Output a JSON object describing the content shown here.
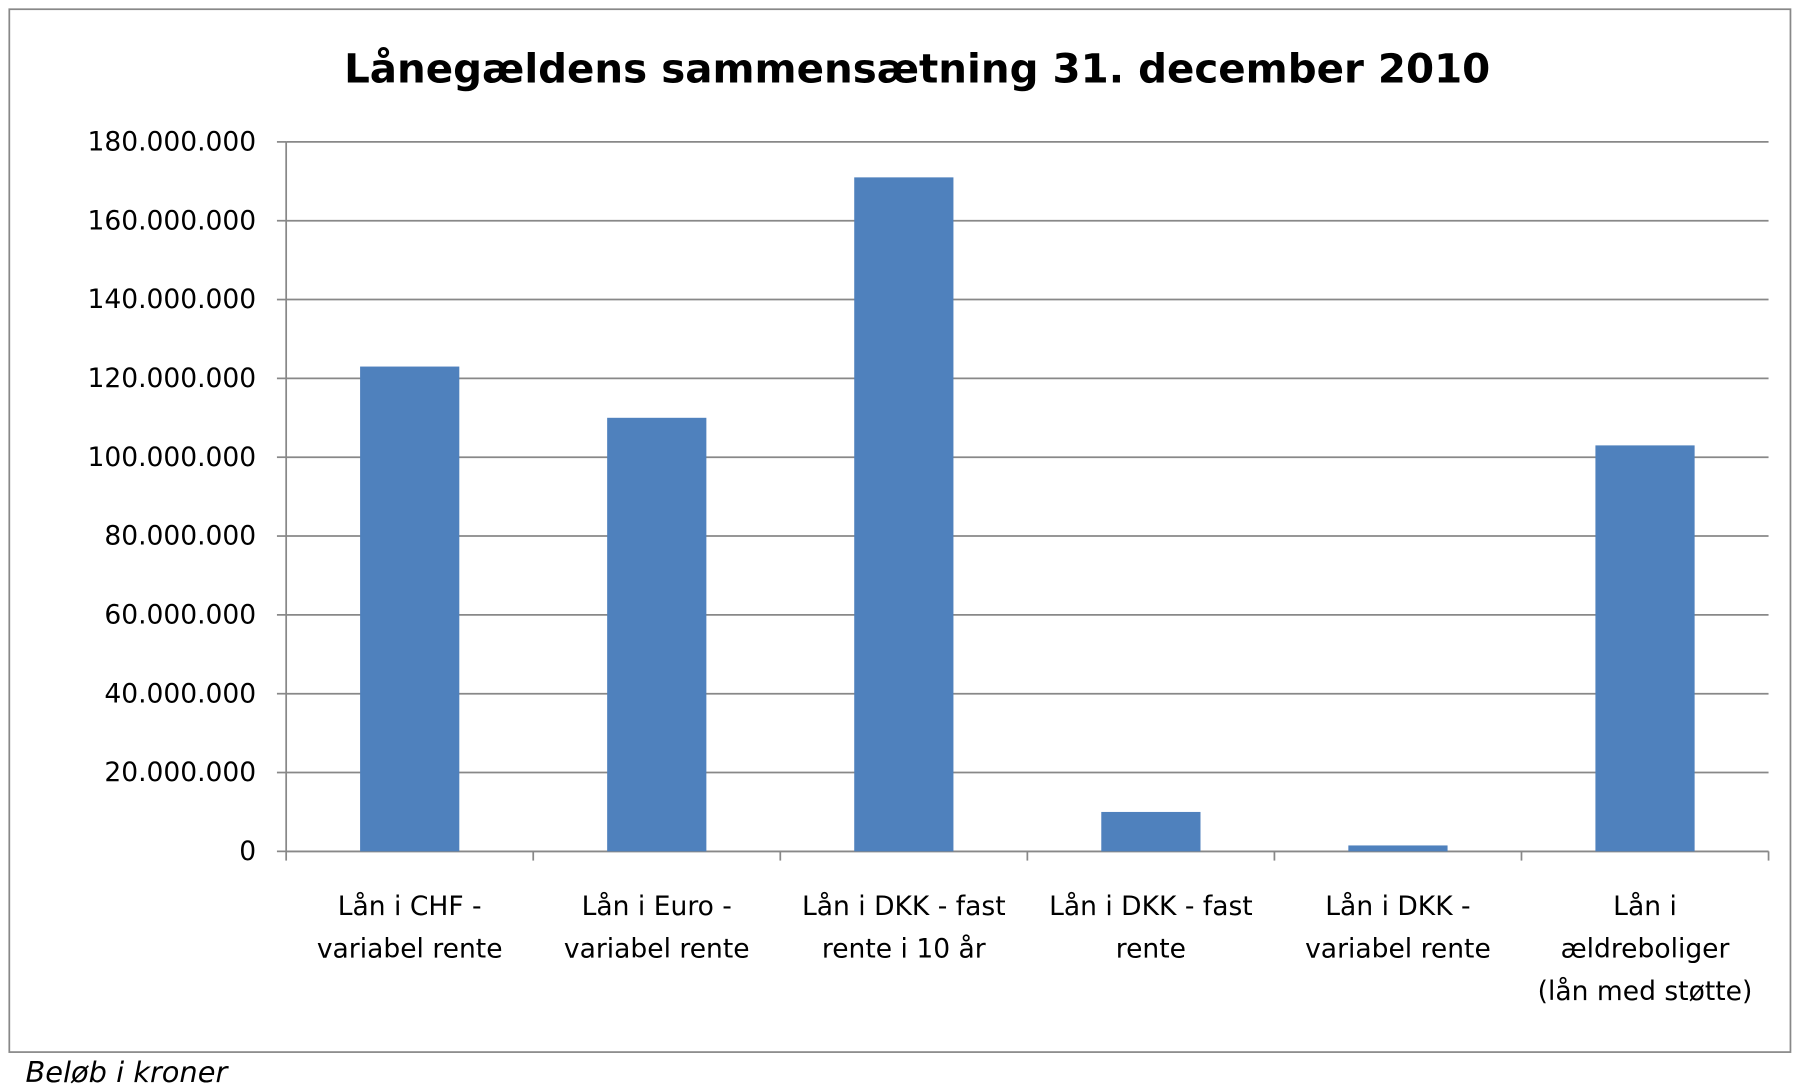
{
  "chart_data": {
    "type": "bar",
    "title": "Lånegældens sammensætning 31. december 2010",
    "footnote": "Beløb i kroner",
    "categories": [
      "Lån i CHF - variabel rente",
      "Lån i Euro - variabel rente",
      "Lån i DKK - fast rente i 10 år",
      "Lån i DKK - fast rente",
      "Lån i DKK - variabel rente",
      "Lån i ældreboliger (lån med støtte)"
    ],
    "values": [
      123000000,
      110000000,
      171000000,
      10000000,
      1500000,
      103000000
    ],
    "color": "#4f81bd",
    "ylim": [
      0,
      180000000
    ],
    "yticks": [
      0,
      {
        "value": 20000000,
        "label": "20.000.000"
      },
      {
        "value": 40000000,
        "label": "40.000.000"
      },
      {
        "value": 60000000,
        "label": "60.000.000"
      },
      {
        "value": 80000000,
        "label": "80.000.000"
      },
      {
        "value": 100000000,
        "label": "100.000.000"
      },
      {
        "value": 120000000,
        "label": "120.000.000"
      },
      {
        "value": 140000000,
        "label": "140.000.000"
      },
      {
        "value": 160000000,
        "label": "160.000.000"
      },
      {
        "value": 180000000,
        "label": "180.000.000"
      }
    ],
    "grid": true
  }
}
